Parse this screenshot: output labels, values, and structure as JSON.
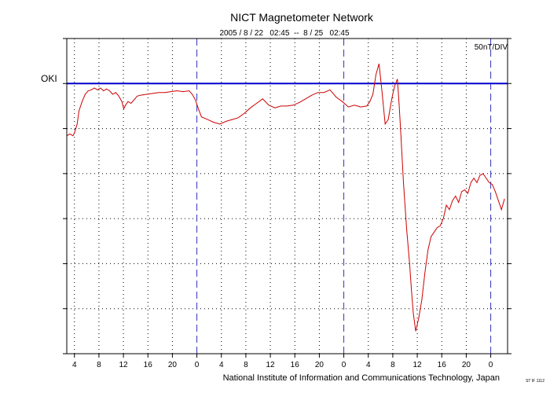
{
  "chart_data": {
    "type": "line",
    "title": "NICT Magnetometer Network",
    "subtitle": "2005 / 8 / 22   02:45  --  8 / 25   02:45",
    "scale_label": "50nT/DIV",
    "station_label": "OKI",
    "footer": "National Institute of Information and Communications Technology, Japan",
    "footer_small": "ST IF 1112",
    "xlim": [
      0,
      72
    ],
    "ylim": [
      -300,
      50
    ],
    "y_tick_step": 50,
    "x_ticks": [
      {
        "x": 1.25,
        "label": "4"
      },
      {
        "x": 5.25,
        "label": "8"
      },
      {
        "x": 9.25,
        "label": "12"
      },
      {
        "x": 13.25,
        "label": "16"
      },
      {
        "x": 17.25,
        "label": "20"
      },
      {
        "x": 21.25,
        "label": "0"
      },
      {
        "x": 25.25,
        "label": "4"
      },
      {
        "x": 29.25,
        "label": "8"
      },
      {
        "x": 33.25,
        "label": "12"
      },
      {
        "x": 37.25,
        "label": "16"
      },
      {
        "x": 41.25,
        "label": "20"
      },
      {
        "x": 45.25,
        "label": "0"
      },
      {
        "x": 49.25,
        "label": "4"
      },
      {
        "x": 53.25,
        "label": "8"
      },
      {
        "x": 57.25,
        "label": "12"
      },
      {
        "x": 61.25,
        "label": "16"
      },
      {
        "x": 65.25,
        "label": "20"
      },
      {
        "x": 69.25,
        "label": "0"
      }
    ],
    "day_boundaries": [
      21.25,
      45.25,
      69.25
    ],
    "baseline": 0,
    "colors": {
      "trace": "#cc0000",
      "baseline": "#0000cc",
      "day_line": "#3333bb",
      "station_label": "#cc0000",
      "grid": "#000000"
    },
    "series": [
      {
        "x": [
          0,
          0.5,
          1,
          1.3,
          1.7,
          2,
          2.5,
          3,
          3.5,
          4,
          4.5,
          5,
          5.5,
          6,
          6.5,
          7,
          7.5,
          8,
          8.5,
          9,
          9.3,
          9.6,
          10,
          10.5,
          11,
          11.5,
          12,
          13,
          14,
          15,
          16,
          17,
          18,
          19,
          20,
          20.5,
          21,
          21.5,
          22,
          23,
          24,
          25,
          26,
          27,
          28,
          29,
          30,
          31,
          32,
          33,
          34,
          35,
          36,
          37,
          38,
          39,
          40,
          41,
          42,
          43,
          44,
          45,
          46,
          47,
          48,
          49,
          49.5,
          50,
          50.5,
          51,
          51.5,
          52,
          52.5,
          53,
          53.3,
          53.6,
          54,
          54.3,
          54.6,
          55,
          55.5,
          56,
          56.3,
          56.6,
          57,
          57.5,
          58,
          58.5,
          59,
          59.5,
          60,
          60.5,
          61,
          61.5,
          62,
          62.5,
          63,
          63.5,
          64,
          64.5,
          65,
          65.5,
          66,
          66.5,
          67,
          67.5,
          68,
          68.5,
          69,
          69.5,
          70,
          70.5,
          71,
          71.5
        ],
        "values": [
          -58,
          -56,
          -58,
          -54,
          -45,
          -30,
          -20,
          -12,
          -8,
          -7,
          -5,
          -7,
          -5,
          -8,
          -6,
          -8,
          -12,
          -10,
          -14,
          -20,
          -28,
          -24,
          -20,
          -22,
          -18,
          -14,
          -13,
          -12,
          -11,
          -10,
          -10,
          -9,
          -8,
          -9,
          -8,
          -12,
          -18,
          -28,
          -37,
          -40,
          -43,
          -45,
          -42,
          -40,
          -38,
          -33,
          -27,
          -22,
          -17,
          -24,
          -27,
          -25,
          -25,
          -24,
          -21,
          -17,
          -13,
          -10,
          -10,
          -7,
          -15,
          -20,
          -26,
          -24,
          -26,
          -25,
          -20,
          -12,
          10,
          22,
          -10,
          -45,
          -40,
          -20,
          -10,
          -2,
          5,
          -25,
          -60,
          -110,
          -160,
          -200,
          -230,
          -255,
          -275,
          -260,
          -240,
          -210,
          -185,
          -170,
          -165,
          -160,
          -158,
          -150,
          -135,
          -140,
          -130,
          -125,
          -132,
          -120,
          -118,
          -122,
          -110,
          -105,
          -110,
          -102,
          -100,
          -105,
          -110,
          -112,
          -120,
          -130,
          -140,
          -128
        ]
      }
    ]
  }
}
